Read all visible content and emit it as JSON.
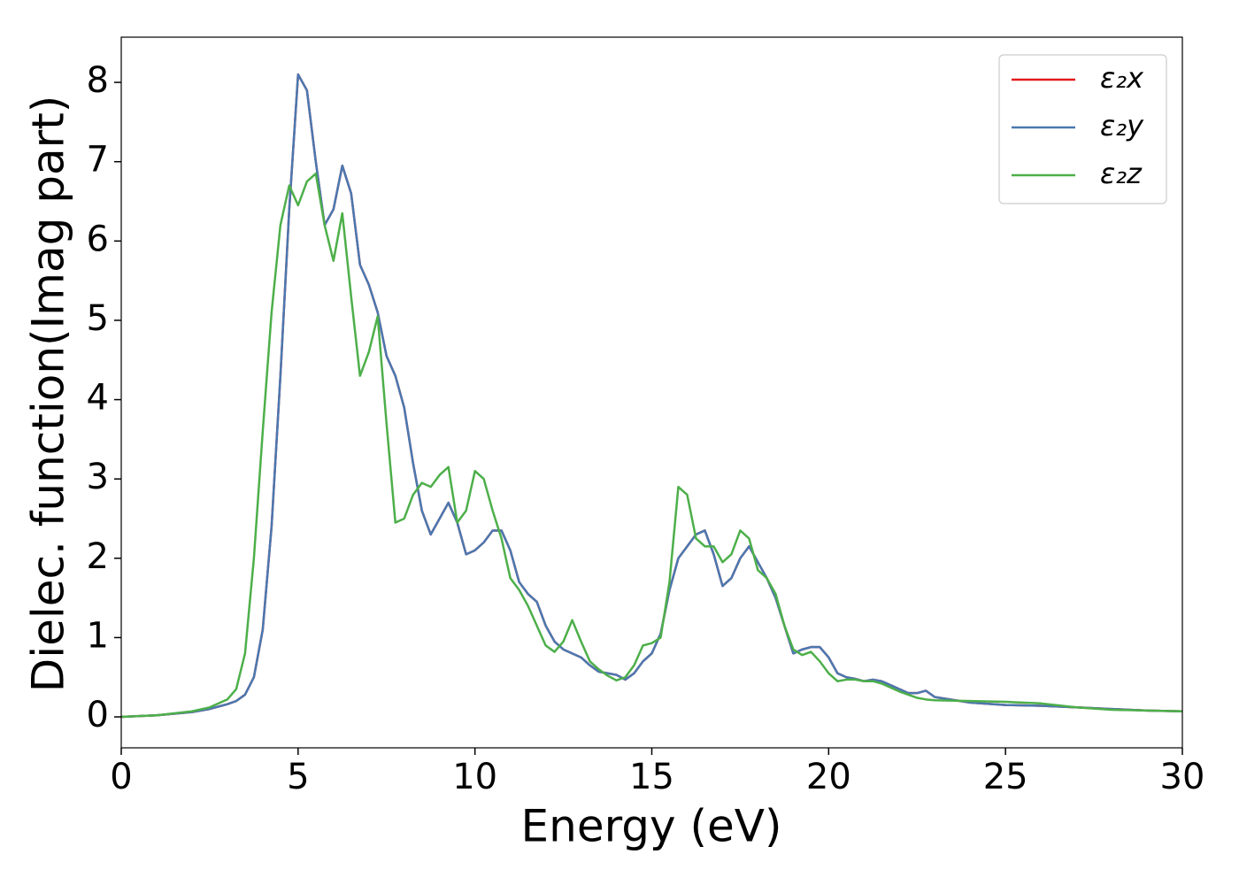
{
  "chart_data": {
    "type": "line",
    "x_label": "Energy (eV)",
    "y_label": "Dielec. function(Imag part)",
    "x": [
      0,
      1,
      2,
      2.5,
      3,
      3.25,
      3.5,
      3.75,
      4,
      4.25,
      4.5,
      4.75,
      5,
      5.25,
      5.5,
      5.75,
      6,
      6.25,
      6.5,
      6.75,
      7,
      7.25,
      7.5,
      7.75,
      8,
      8.25,
      8.5,
      8.75,
      9,
      9.25,
      9.5,
      9.75,
      10,
      10.25,
      10.5,
      10.75,
      11,
      11.25,
      11.5,
      11.75,
      12,
      12.25,
      12.5,
      12.75,
      13,
      13.25,
      13.5,
      13.75,
      14,
      14.25,
      14.5,
      14.75,
      15,
      15.25,
      15.5,
      15.75,
      16,
      16.25,
      16.5,
      16.75,
      17,
      17.25,
      17.5,
      17.75,
      18,
      18.25,
      18.5,
      18.75,
      19,
      19.25,
      19.5,
      19.75,
      20,
      20.25,
      20.5,
      20.75,
      21,
      21.25,
      21.5,
      21.75,
      22,
      22.25,
      22.5,
      22.75,
      23,
      24,
      25,
      26,
      27,
      28,
      29,
      30
    ],
    "series": [
      {
        "name": "ε₂x",
        "color": "#e41a1c",
        "values": [
          0,
          0.02,
          0.06,
          0.1,
          0.16,
          0.2,
          0.28,
          0.5,
          1.1,
          2.4,
          4.3,
          6.4,
          8.1,
          7.9,
          7.0,
          6.2,
          6.4,
          6.95,
          6.6,
          5.7,
          5.45,
          5.1,
          4.55,
          4.3,
          3.9,
          3.2,
          2.6,
          2.3,
          2.5,
          2.7,
          2.45,
          2.05,
          2.1,
          2.2,
          2.35,
          2.35,
          2.1,
          1.7,
          1.55,
          1.45,
          1.15,
          0.95,
          0.85,
          0.8,
          0.75,
          0.65,
          0.57,
          0.55,
          0.53,
          0.47,
          0.55,
          0.7,
          0.8,
          1.05,
          1.6,
          2.0,
          2.15,
          2.3,
          2.35,
          2.05,
          1.65,
          1.75,
          2.0,
          2.15,
          1.95,
          1.75,
          1.5,
          1.15,
          0.8,
          0.85,
          0.88,
          0.88,
          0.75,
          0.55,
          0.5,
          0.48,
          0.45,
          0.47,
          0.45,
          0.4,
          0.35,
          0.3,
          0.3,
          0.33,
          0.25,
          0.18,
          0.15,
          0.14,
          0.12,
          0.1,
          0.08,
          0.07
        ]
      },
      {
        "name": "ε₂y",
        "color": "#4a78b0",
        "values": [
          0,
          0.02,
          0.06,
          0.1,
          0.16,
          0.2,
          0.28,
          0.5,
          1.1,
          2.4,
          4.3,
          6.4,
          8.1,
          7.9,
          7.0,
          6.2,
          6.4,
          6.95,
          6.6,
          5.7,
          5.45,
          5.1,
          4.55,
          4.3,
          3.9,
          3.2,
          2.6,
          2.3,
          2.5,
          2.7,
          2.45,
          2.05,
          2.1,
          2.2,
          2.35,
          2.35,
          2.1,
          1.7,
          1.55,
          1.45,
          1.15,
          0.95,
          0.85,
          0.8,
          0.75,
          0.65,
          0.57,
          0.55,
          0.53,
          0.47,
          0.55,
          0.7,
          0.8,
          1.05,
          1.6,
          2.0,
          2.15,
          2.3,
          2.35,
          2.05,
          1.65,
          1.75,
          2.0,
          2.15,
          1.95,
          1.75,
          1.5,
          1.15,
          0.8,
          0.85,
          0.88,
          0.88,
          0.75,
          0.55,
          0.5,
          0.48,
          0.45,
          0.47,
          0.45,
          0.4,
          0.35,
          0.3,
          0.3,
          0.33,
          0.25,
          0.18,
          0.15,
          0.14,
          0.12,
          0.1,
          0.08,
          0.07
        ]
      },
      {
        "name": "ε₂z",
        "color": "#4daf4a",
        "values": [
          0,
          0.02,
          0.07,
          0.12,
          0.22,
          0.35,
          0.8,
          2.0,
          3.6,
          5.1,
          6.2,
          6.7,
          6.45,
          6.75,
          6.85,
          6.2,
          5.75,
          6.35,
          5.3,
          4.3,
          4.6,
          5.05,
          3.7,
          2.45,
          2.5,
          2.8,
          2.95,
          2.9,
          3.05,
          3.15,
          2.45,
          2.6,
          3.1,
          3.0,
          2.6,
          2.25,
          1.75,
          1.6,
          1.4,
          1.15,
          0.9,
          0.82,
          0.95,
          1.22,
          0.95,
          0.7,
          0.6,
          0.52,
          0.46,
          0.5,
          0.65,
          0.9,
          0.93,
          1.0,
          1.7,
          2.9,
          2.8,
          2.25,
          2.15,
          2.15,
          1.95,
          2.05,
          2.35,
          2.25,
          1.85,
          1.75,
          1.55,
          1.15,
          0.85,
          0.78,
          0.82,
          0.7,
          0.55,
          0.45,
          0.47,
          0.47,
          0.45,
          0.45,
          0.42,
          0.37,
          0.32,
          0.28,
          0.24,
          0.22,
          0.21,
          0.2,
          0.19,
          0.17,
          0.12,
          0.09,
          0.08,
          0.07
        ]
      }
    ],
    "xlim": [
      0,
      30
    ],
    "xticks": [
      0,
      5,
      10,
      15,
      20,
      25,
      30
    ],
    "ylim": [
      -0.39,
      8.57
    ],
    "yticks": [
      0,
      1,
      2,
      3,
      4,
      5,
      6,
      7,
      8
    ],
    "legend": "upper right",
    "grid": false
  }
}
